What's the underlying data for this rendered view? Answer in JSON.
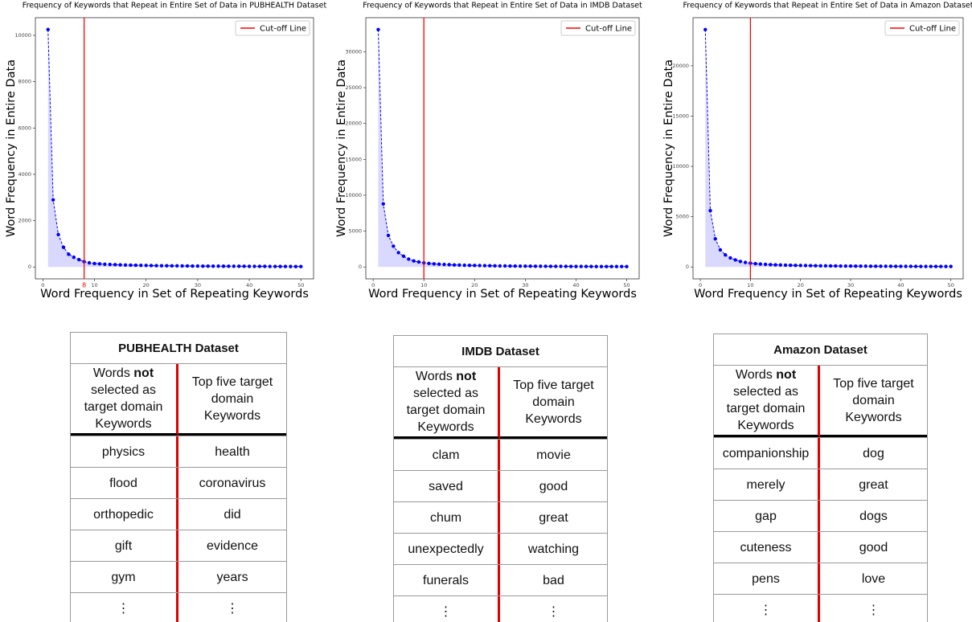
{
  "chart_data": [
    {
      "type": "line",
      "title": "Frequency of Keywords that Repeat in Entire Set of Data in PUBHEALTH Dataset",
      "xlabel": "Word Frequency in Set of Repeating Keywords",
      "ylabel": "Word Frequency in Entire Data",
      "x": [
        1,
        2,
        3,
        4,
        5,
        6,
        7,
        8,
        9,
        10,
        11,
        12,
        13,
        14,
        15,
        16,
        17,
        18,
        19,
        20,
        21,
        22,
        23,
        24,
        25,
        26,
        27,
        28,
        29,
        30,
        31,
        32,
        33,
        34,
        35,
        36,
        37,
        38,
        39,
        40,
        41,
        42,
        43,
        44,
        45,
        46,
        47,
        48,
        49,
        50
      ],
      "series": [
        {
          "name": null,
          "color": "#0000ff",
          "values": [
            10250,
            2900,
            1400,
            850,
            550,
            420,
            320,
            230,
            180,
            150,
            135,
            120,
            110,
            100,
            92,
            85,
            80,
            75,
            70,
            66,
            62,
            58,
            55,
            52,
            50,
            48,
            46,
            44,
            42,
            40,
            38,
            37,
            36,
            35,
            34,
            33,
            32,
            31,
            30,
            29,
            28,
            27,
            26,
            25,
            24,
            23,
            22,
            21,
            20,
            20
          ]
        }
      ],
      "xlim": [
        -1.45,
        52.45
      ],
      "xticks": [
        0,
        10,
        20,
        30,
        40,
        50
      ],
      "ylim": [
        -512,
        10762
      ],
      "yticks": [
        0,
        2000,
        4000,
        6000,
        8000,
        10000
      ],
      "cutoff": {
        "name": "Cut-off Line",
        "value": 8,
        "color": "#ff0000",
        "tick_label": true
      },
      "legend": "upper right"
    },
    {
      "type": "line",
      "title": "Frequency of Keywords that Repeat in Entire Set of Data in IMDB Dataset",
      "xlabel": "Word Frequency in Set of Repeating Keywords",
      "ylabel": "Word Frequency in Entire Data",
      "x": [
        1,
        2,
        3,
        4,
        5,
        6,
        7,
        8,
        9,
        10,
        11,
        12,
        13,
        14,
        15,
        16,
        17,
        18,
        19,
        20,
        21,
        22,
        23,
        24,
        25,
        26,
        27,
        28,
        29,
        30,
        31,
        32,
        33,
        34,
        35,
        36,
        37,
        38,
        39,
        40,
        41,
        42,
        43,
        44,
        45,
        46,
        47,
        48,
        49,
        50
      ],
      "series": [
        {
          "name": null,
          "color": "#0000ff",
          "values": [
            33100,
            8800,
            4400,
            2900,
            2000,
            1500,
            1100,
            850,
            700,
            580,
            500,
            440,
            390,
            350,
            320,
            290,
            265,
            245,
            225,
            210,
            195,
            182,
            170,
            160,
            150,
            142,
            135,
            128,
            122,
            116,
            110,
            105,
            100,
            96,
            92,
            88,
            85,
            82,
            79,
            76,
            73,
            70,
            68,
            66,
            64,
            62,
            60,
            58,
            56,
            54
          ]
        }
      ],
      "xlim": [
        -1.45,
        52.45
      ],
      "xticks": [
        0,
        10,
        20,
        30,
        40,
        50
      ],
      "ylim": [
        -1655,
        34755
      ],
      "yticks": [
        0,
        5000,
        10000,
        15000,
        20000,
        25000,
        30000
      ],
      "cutoff": {
        "name": "Cut-off Line",
        "value": 10,
        "color": "#ff0000",
        "tick_label": false
      },
      "legend": "upper right"
    },
    {
      "type": "line",
      "title": "Frequency of Keywords that Repeat in Entire Set of Data in Amazon Dataset",
      "xlabel": "Word Frequency in Set of Repeating Keywords",
      "ylabel": "Word Frequency in Entire Data",
      "x": [
        1,
        2,
        3,
        4,
        5,
        6,
        7,
        8,
        9,
        10,
        11,
        12,
        13,
        14,
        15,
        16,
        17,
        18,
        19,
        20,
        21,
        22,
        23,
        24,
        25,
        26,
        27,
        28,
        29,
        30,
        31,
        32,
        33,
        34,
        35,
        36,
        37,
        38,
        39,
        40,
        41,
        42,
        43,
        44,
        45,
        46,
        47,
        48,
        49,
        50
      ],
      "series": [
        {
          "name": null,
          "color": "#0000ff",
          "values": [
            23600,
            5600,
            2800,
            1700,
            1200,
            900,
            700,
            550,
            450,
            380,
            330,
            290,
            260,
            235,
            215,
            198,
            183,
            170,
            158,
            148,
            139,
            131,
            124,
            117,
            111,
            106,
            101,
            97,
            93,
            89,
            86,
            83,
            80,
            77,
            74,
            72,
            70,
            68,
            66,
            64,
            62,
            60,
            58,
            56,
            55,
            54,
            53,
            52,
            51,
            50
          ]
        }
      ],
      "xlim": [
        -1.45,
        52.45
      ],
      "xticks": [
        0,
        10,
        20,
        30,
        40,
        50
      ],
      "ylim": [
        -1180,
        24780
      ],
      "yticks": [
        0,
        5000,
        10000,
        15000,
        20000
      ],
      "cutoff": {
        "name": "Cut-off Line",
        "value": 10,
        "color": "#ff0000",
        "tick_label": false
      },
      "legend": "upper right"
    }
  ],
  "tables": [
    {
      "title": "PUBHEALTH Dataset",
      "columns": [
        [
          "Words",
          "not",
          "selected as target domain Keywords"
        ],
        "Top five target domain Keywords"
      ],
      "rows": [
        [
          "physics",
          "health"
        ],
        [
          "flood",
          "coronavirus"
        ],
        [
          "orthopedic",
          "did"
        ],
        [
          "gift",
          "evidence"
        ],
        [
          "gym",
          "years"
        ],
        [
          "⋮",
          "⋮"
        ]
      ]
    },
    {
      "title": "IMDB Dataset",
      "columns": [
        [
          "Words",
          "not",
          "selected as target domain Keywords"
        ],
        "Top five target domain Keywords"
      ],
      "rows": [
        [
          "clam",
          "movie"
        ],
        [
          "saved",
          "good"
        ],
        [
          "chum",
          "great"
        ],
        [
          "unexpectedly",
          "watching"
        ],
        [
          "funerals",
          "bad"
        ],
        [
          "⋮",
          "⋮"
        ]
      ]
    },
    {
      "title": "Amazon Dataset",
      "columns": [
        [
          "Words",
          "not",
          "selected as target domain Keywords"
        ],
        "Top five target domain Keywords"
      ],
      "rows": [
        [
          "companionship",
          "dog"
        ],
        [
          "merely",
          "great"
        ],
        [
          "gap",
          "dogs"
        ],
        [
          "cuteness",
          "good"
        ],
        [
          "pens",
          "love"
        ],
        [
          "⋮",
          "⋮"
        ]
      ]
    }
  ]
}
